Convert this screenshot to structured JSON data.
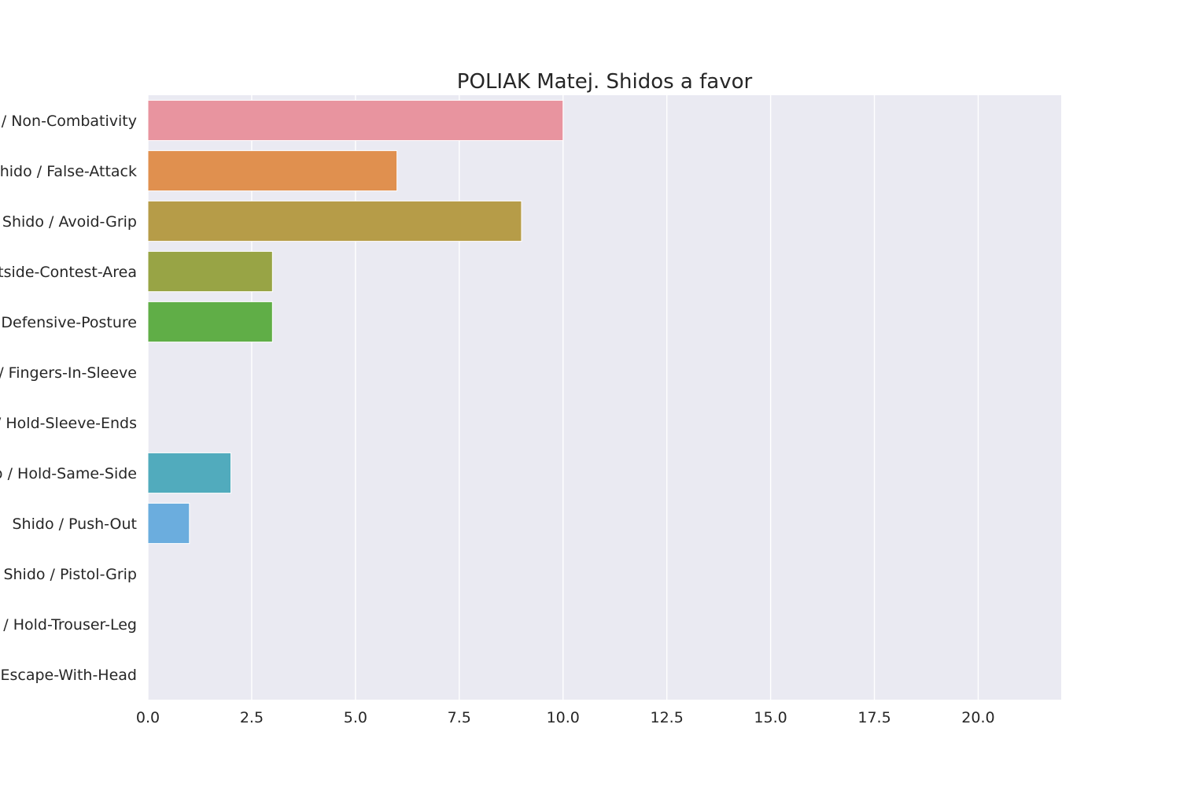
{
  "chart_data": {
    "type": "bar",
    "orientation": "horizontal",
    "title": "POLIAK Matej. Shidos a favor",
    "xlabel": "",
    "ylabel": "",
    "categories": [
      "Shido / Non-Combativity",
      "Shido / False-Attack",
      "Shido / Avoid-Grip",
      "Shido / Outside-Contest-Area",
      "Shido / Defensive-Posture",
      "Shido / Fingers-In-Sleeve",
      "Shido / Hold-Sleeve-Ends",
      "Shido / Hold-Same-Side",
      "Shido / Push-Out",
      "Shido / Pistol-Grip",
      "Shido / Hold-Trouser-Leg",
      "Shido / Escape-With-Head"
    ],
    "values": [
      10,
      6,
      9,
      3,
      3,
      0,
      0,
      2,
      1,
      0,
      0,
      0
    ],
    "colors": [
      "#e8949f",
      "#e0904f",
      "#b69c48",
      "#98a445",
      "#60ae47",
      "#4fae8f",
      "#50ac9d",
      "#51abbd",
      "#6badde",
      "#a79fe0",
      "#d28ee0",
      "#e58fc5"
    ],
    "xlim": [
      0,
      22
    ],
    "xticks": [
      "0.0",
      "2.5",
      "5.0",
      "7.5",
      "10.0",
      "12.5",
      "15.0",
      "17.5",
      "20.0"
    ],
    "xtick_values": [
      0,
      2.5,
      5,
      7.5,
      10,
      12.5,
      15,
      17.5,
      20
    ],
    "grid": true,
    "background": "#eaeaf2",
    "grid_color": "#ffffff"
  }
}
